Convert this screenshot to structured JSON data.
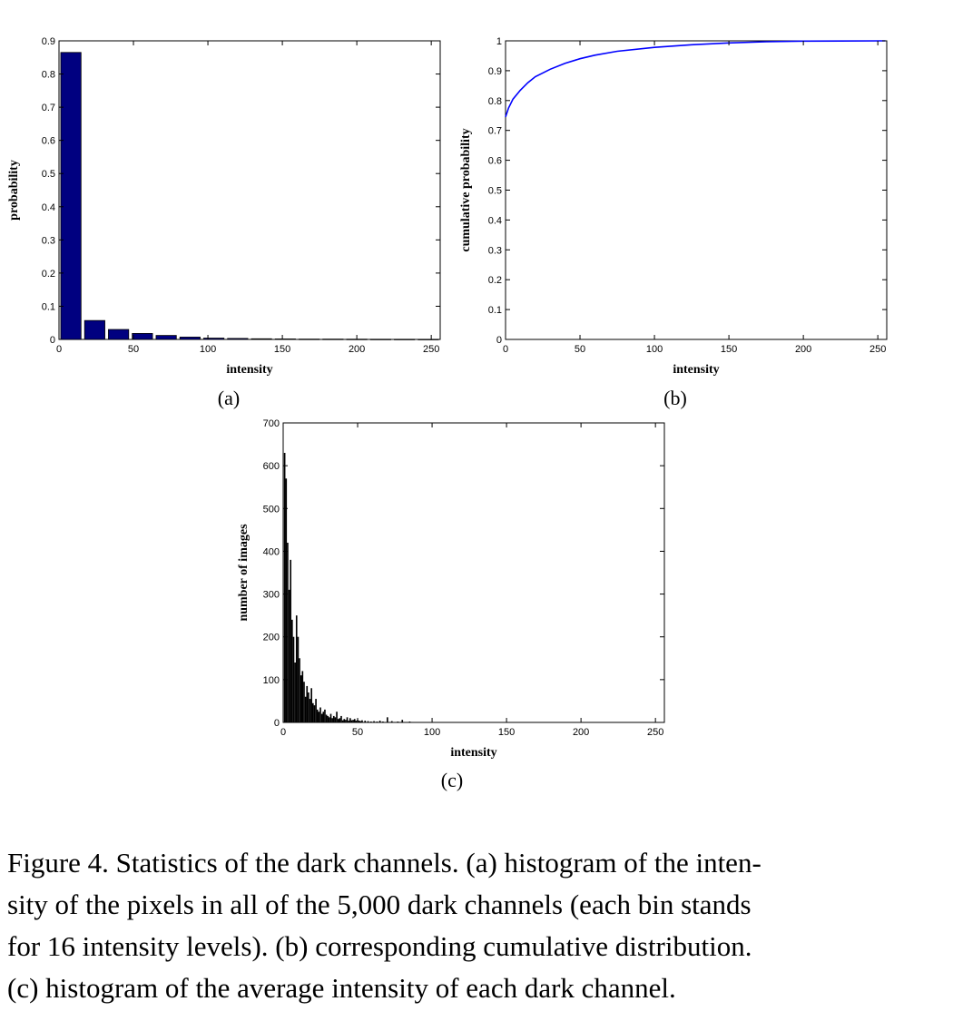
{
  "chart_data": [
    {
      "panel": "(a)",
      "type": "bar",
      "xlabel": "intensity",
      "ylabel": "probability",
      "xlim": [
        0,
        256
      ],
      "ylim": [
        0,
        0.9
      ],
      "xticks": [
        0,
        50,
        100,
        150,
        200,
        250
      ],
      "yticks": [
        0,
        0.1,
        0.2,
        0.3,
        0.4,
        0.5,
        0.6,
        0.7,
        0.8,
        0.9
      ],
      "bin_width": 16,
      "x": [
        8,
        24,
        40,
        56,
        72,
        88,
        104,
        120,
        136,
        152,
        168,
        184,
        200,
        216,
        232,
        248
      ],
      "values": [
        0.865,
        0.057,
        0.03,
        0.018,
        0.012,
        0.007,
        0.004,
        0.003,
        0.002,
        0.0015,
        0.001,
        0.001,
        0.0008,
        0.0006,
        0.0005,
        0.0004
      ],
      "color": "#000080",
      "grid": false
    },
    {
      "panel": "(b)",
      "type": "line",
      "xlabel": "intensity",
      "ylabel": "cumulative probability",
      "xlim": [
        0,
        256
      ],
      "ylim": [
        0,
        1
      ],
      "xticks": [
        0,
        50,
        100,
        150,
        200,
        250
      ],
      "yticks": [
        0,
        0.1,
        0.2,
        0.3,
        0.4,
        0.5,
        0.6,
        0.7,
        0.8,
        0.9,
        1
      ],
      "x": [
        0,
        2,
        5,
        10,
        15,
        20,
        30,
        40,
        50,
        60,
        75,
        100,
        125,
        150,
        175,
        200,
        225,
        255
      ],
      "y": [
        0.745,
        0.775,
        0.805,
        0.835,
        0.86,
        0.88,
        0.905,
        0.925,
        0.94,
        0.952,
        0.965,
        0.978,
        0.987,
        0.993,
        0.997,
        0.999,
        0.9995,
        1.0
      ],
      "color": "#0000ff",
      "grid": false
    },
    {
      "panel": "(c)",
      "type": "bar",
      "xlabel": "intensity",
      "ylabel": "number of images",
      "xlim": [
        0,
        256
      ],
      "ylim": [
        0,
        700
      ],
      "xticks": [
        0,
        50,
        100,
        150,
        200,
        250
      ],
      "yticks": [
        0,
        100,
        200,
        300,
        400,
        500,
        600,
        700
      ],
      "bin_width": 1,
      "x": [
        1,
        2,
        3,
        4,
        5,
        6,
        7,
        8,
        9,
        10,
        11,
        12,
        13,
        14,
        15,
        16,
        17,
        18,
        19,
        20,
        21,
        22,
        23,
        24,
        25,
        26,
        27,
        28,
        29,
        30,
        31,
        32,
        33,
        34,
        35,
        36,
        37,
        38,
        39,
        40,
        41,
        42,
        43,
        44,
        45,
        46,
        47,
        48,
        49,
        50,
        51,
        52,
        53,
        55,
        57,
        59,
        61,
        63,
        65,
        67,
        70,
        73,
        77,
        80,
        85
      ],
      "values": [
        630,
        570,
        420,
        310,
        380,
        240,
        200,
        140,
        250,
        200,
        150,
        110,
        120,
        95,
        60,
        85,
        70,
        55,
        80,
        45,
        40,
        55,
        30,
        25,
        35,
        20,
        25,
        30,
        18,
        15,
        12,
        20,
        10,
        15,
        12,
        25,
        8,
        10,
        15,
        5,
        8,
        6,
        12,
        4,
        10,
        5,
        6,
        8,
        4,
        6,
        4,
        3,
        5,
        4,
        3,
        2,
        3,
        2,
        4,
        2,
        12,
        3,
        2,
        6,
        2
      ],
      "color": "#000000",
      "grid": false
    }
  ],
  "figure": {
    "panel_labels": [
      "(a)",
      "(b)",
      "(c)"
    ],
    "caption_lines": [
      "Figure 4. Statistics of the dark channels. (a) histogram of the inten-",
      "sity of the pixels in all of the 5,000 dark channels (each bin stands",
      "for 16 intensity levels). (b) corresponding cumulative distribution.",
      "(c) histogram of the average intensity of each dark channel."
    ]
  }
}
